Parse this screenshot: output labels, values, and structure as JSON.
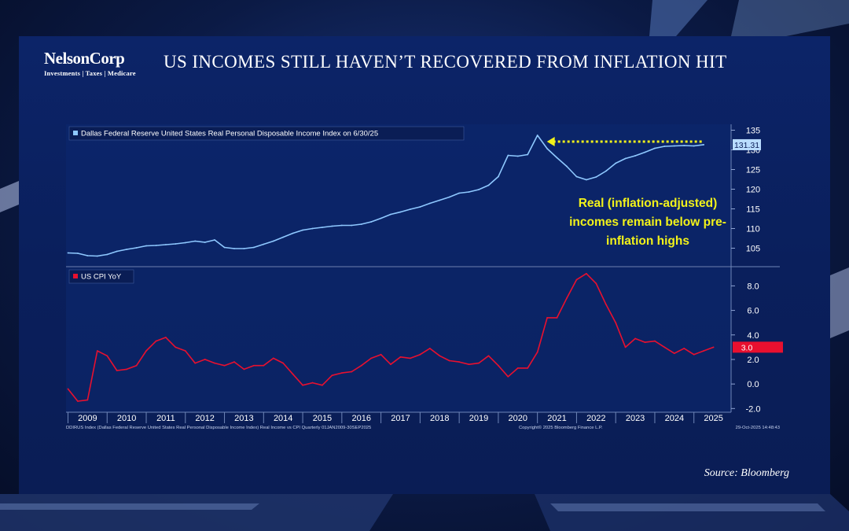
{
  "header": {
    "logo_name": "NelsonCorp",
    "logo_tagline": "Investments | Taxes | Medicare",
    "title": "US INCOMES STILL HAVEN’T RECOVERED FROM INFLATION HIT"
  },
  "source": "Source: Bloomberg",
  "footnote_left": "DDIRUS Index (Dallas Federal Reserve United States Real Personal Disposable Income Index) Real Income vs CPI Quarterly 01JAN2009-30SEP2025",
  "footnote_mid": "Copyright© 2025 Bloomberg Finance L.P.",
  "footnote_right": "29-Oct-2025 14:48:43",
  "colors": {
    "income_line": "#8ec8ff",
    "cpi_line": "#e8102f",
    "annotation": "#f2f21a",
    "income_badge": "#b9dcff",
    "cpi_badge": "#e8102f"
  },
  "chart_data": [
    {
      "type": "line",
      "series": [
        {
          "name": "Dallas Federal Reserve United States Real Personal Disposable Income Index on 6/30/25",
          "x": [
            2009.0,
            2009.25,
            2009.5,
            2009.75,
            2010.0,
            2010.25,
            2010.5,
            2010.75,
            2011.0,
            2011.25,
            2011.5,
            2011.75,
            2012.0,
            2012.25,
            2012.5,
            2012.75,
            2013.0,
            2013.25,
            2013.5,
            2013.75,
            2014.0,
            2014.25,
            2014.5,
            2014.75,
            2015.0,
            2015.25,
            2015.5,
            2015.75,
            2016.0,
            2016.25,
            2016.5,
            2016.75,
            2017.0,
            2017.25,
            2017.5,
            2017.75,
            2018.0,
            2018.25,
            2018.5,
            2018.75,
            2019.0,
            2019.25,
            2019.5,
            2019.75,
            2020.0,
            2020.25,
            2020.5,
            2020.75,
            2021.0,
            2021.25,
            2021.5,
            2021.75,
            2022.0,
            2022.25,
            2022.5,
            2022.75,
            2023.0,
            2023.25,
            2023.5,
            2023.75,
            2024.0,
            2024.25,
            2024.5,
            2024.75,
            2025.0,
            2025.25
          ],
          "values": [
            103.8,
            103.7,
            103.1,
            103.0,
            103.4,
            104.2,
            104.7,
            105.1,
            105.6,
            105.7,
            105.9,
            106.1,
            106.4,
            106.8,
            106.5,
            107.1,
            105.2,
            104.9,
            104.9,
            105.2,
            106.0,
            106.8,
            107.8,
            108.8,
            109.6,
            110.0,
            110.3,
            110.6,
            110.8,
            110.8,
            111.1,
            111.7,
            112.6,
            113.6,
            114.2,
            114.9,
            115.5,
            116.4,
            117.2,
            118.0,
            119.0,
            119.3,
            119.9,
            121.0,
            123.2,
            128.6,
            128.4,
            128.8,
            133.7,
            130.3,
            128.0,
            125.8,
            123.2,
            122.4,
            123.1,
            124.6,
            126.6,
            127.8,
            128.5,
            129.4,
            130.4,
            130.9,
            131.0,
            131.1,
            131.0,
            131.31
          ]
        }
      ],
      "y_ticks": [
        "105",
        "110",
        "115",
        "120",
        "125",
        "130",
        "135"
      ],
      "ylim": [
        100.5,
        136.5
      ],
      "last_value_label": "131.31",
      "annotation": "Real (inflation-adjusted) incomes remain below pre-inflation highs",
      "legend_position": "top-left",
      "grid": false
    },
    {
      "type": "line",
      "series": [
        {
          "name": "US CPI YoY",
          "x": [
            2009.0,
            2009.25,
            2009.5,
            2009.75,
            2010.0,
            2010.25,
            2010.5,
            2010.75,
            2011.0,
            2011.25,
            2011.5,
            2011.75,
            2012.0,
            2012.25,
            2012.5,
            2012.75,
            2013.0,
            2013.25,
            2013.5,
            2013.75,
            2014.0,
            2014.25,
            2014.5,
            2014.75,
            2015.0,
            2015.25,
            2015.5,
            2015.75,
            2016.0,
            2016.25,
            2016.5,
            2016.75,
            2017.0,
            2017.25,
            2017.5,
            2017.75,
            2018.0,
            2018.25,
            2018.5,
            2018.75,
            2019.0,
            2019.25,
            2019.5,
            2019.75,
            2020.0,
            2020.25,
            2020.5,
            2020.75,
            2021.0,
            2021.25,
            2021.5,
            2021.75,
            2022.0,
            2022.25,
            2022.5,
            2022.75,
            2023.0,
            2023.25,
            2023.5,
            2023.75,
            2024.0,
            2024.25,
            2024.5,
            2024.75,
            2025.0,
            2025.25,
            2025.5
          ],
          "values": [
            -0.4,
            -1.4,
            -1.3,
            2.7,
            2.3,
            1.1,
            1.2,
            1.5,
            2.7,
            3.5,
            3.8,
            3.0,
            2.7,
            1.7,
            2.0,
            1.7,
            1.5,
            1.8,
            1.2,
            1.5,
            1.5,
            2.1,
            1.7,
            0.8,
            -0.1,
            0.1,
            -0.1,
            0.7,
            0.9,
            1.0,
            1.5,
            2.1,
            2.4,
            1.6,
            2.2,
            2.1,
            2.4,
            2.9,
            2.3,
            1.9,
            1.8,
            1.6,
            1.7,
            2.3,
            1.5,
            0.6,
            1.3,
            1.3,
            2.6,
            5.4,
            5.4,
            7.0,
            8.5,
            9.0,
            8.2,
            6.5,
            5.0,
            3.0,
            3.7,
            3.4,
            3.5,
            3.0,
            2.5,
            2.9,
            2.4,
            2.7,
            3.0
          ]
        }
      ],
      "y_ticks": [
        "-2.0",
        "0.0",
        "2.0",
        "4.0",
        "6.0",
        "8.0"
      ],
      "ylim": [
        -2.3,
        9.5
      ],
      "last_value_label": "3.0",
      "legend_position": "top-left",
      "grid": false
    }
  ],
  "x_axis": {
    "years": [
      "2009",
      "2010",
      "2011",
      "2012",
      "2013",
      "2014",
      "2015",
      "2016",
      "2017",
      "2018",
      "2019",
      "2020",
      "2021",
      "2022",
      "2023",
      "2024",
      "2025"
    ],
    "range": [
      2008.95,
      2025.95
    ]
  }
}
